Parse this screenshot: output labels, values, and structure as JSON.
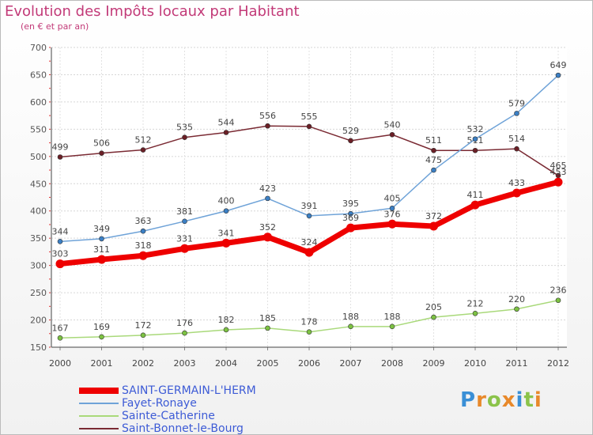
{
  "title": "Evolution des Impôts locaux par Habitant",
  "subtitle": "(en € et par an)",
  "logo": {
    "text": "Proxiti",
    "letters": [
      {
        "ch": "P",
        "color": "#3a8fd6"
      },
      {
        "ch": "r",
        "color": "#e8892a"
      },
      {
        "ch": "o",
        "color": "#8bc34a"
      },
      {
        "ch": "x",
        "color": "#e8892a"
      },
      {
        "ch": "i",
        "color": "#3a8fd6"
      },
      {
        "ch": "t",
        "color": "#8bc34a"
      },
      {
        "ch": "i",
        "color": "#e8892a"
      }
    ]
  },
  "chart_data": {
    "type": "line",
    "x": [
      2000,
      2001,
      2002,
      2003,
      2004,
      2005,
      2006,
      2007,
      2008,
      2009,
      2010,
      2011,
      2012
    ],
    "ylim": [
      150,
      700
    ],
    "yticks": [
      150,
      200,
      250,
      300,
      350,
      400,
      450,
      500,
      550,
      600,
      650,
      700
    ],
    "grid": true,
    "legend_position": "bottom-left",
    "series": [
      {
        "name": "Saint-Bonnet-le-Bourg",
        "color": "#7a2a33",
        "marker": "#6b1f26",
        "values": [
          499,
          506,
          512,
          535,
          544,
          556,
          555,
          529,
          540,
          511,
          511,
          514,
          465
        ],
        "labels_below": false
      },
      {
        "name": "Fayet-Ronaye",
        "color": "#6fa3d8",
        "marker": "#3b7fc4",
        "values": [
          344,
          349,
          363,
          381,
          400,
          423,
          391,
          395,
          405,
          475,
          532,
          579,
          649
        ],
        "labels_below": false
      },
      {
        "name": "Sainte-Catherine",
        "color": "#a9d97a",
        "marker": "#7cc242",
        "values": [
          167,
          169,
          172,
          176,
          182,
          185,
          178,
          188,
          188,
          205,
          212,
          220,
          236
        ],
        "labels_below": false
      },
      {
        "name": "SAINT-GERMAIN-L'HERM",
        "color": "#ee0000",
        "marker": "#ee0000",
        "values": [
          303,
          311,
          318,
          331,
          341,
          352,
          324,
          369,
          376,
          372,
          411,
          433,
          453
        ],
        "labels_below": false
      }
    ],
    "legend_order": [
      "SAINT-GERMAIN-L'HERM",
      "Fayet-Ronaye",
      "Sainte-Catherine",
      "Saint-Bonnet-le-Bourg"
    ]
  }
}
